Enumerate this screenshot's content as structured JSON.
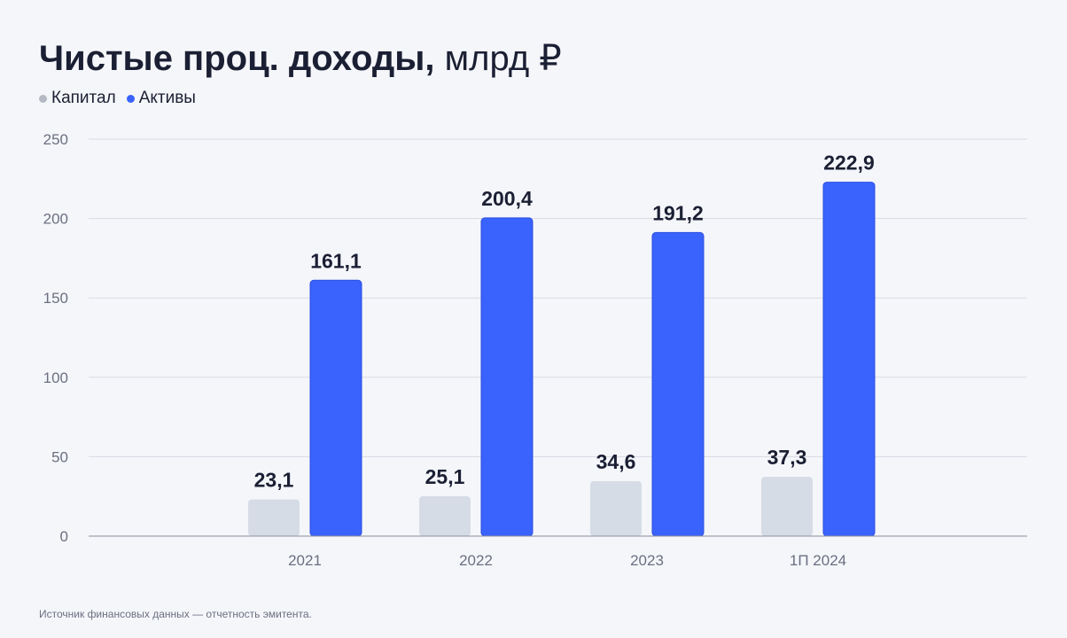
{
  "title": "Чистые проц. доходы,",
  "title_unit": "млрд ₽",
  "footnote": "Источник финансовых данных — отчетность эмитента.",
  "colors": {
    "background": "#f5f6fa",
    "capital": "#d6dce6",
    "capital_legend": "#b4b9c3",
    "assets": "#3a62fd",
    "grid": "#d9dbe2",
    "text": "#1b1f33",
    "axis_text": "#6b6f80"
  },
  "chart_data": {
    "type": "bar",
    "categories": [
      "2021",
      "2022",
      "2023",
      "1П 2024"
    ],
    "series": [
      {
        "name": "Капитал",
        "values": [
          23.1,
          25.1,
          34.6,
          37.3
        ],
        "labels": [
          "23,1",
          "25,1",
          "34,6",
          "37,3"
        ]
      },
      {
        "name": "Активы",
        "values": [
          161.1,
          200.4,
          191.2,
          222.9
        ],
        "labels": [
          "161,1",
          "200,4",
          "191,2",
          "222,9"
        ]
      }
    ],
    "yticks": [
      0,
      50,
      100,
      150,
      200,
      250
    ],
    "ylim": [
      0,
      250
    ],
    "grid": true,
    "legend_position": "top-left"
  }
}
